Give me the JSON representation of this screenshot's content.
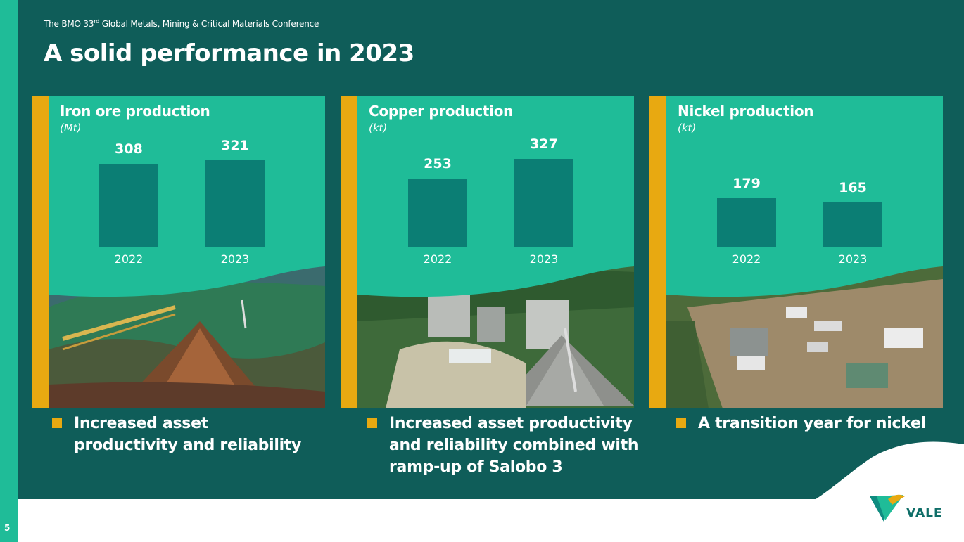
{
  "header": {
    "conference_prefix": "The BMO 33",
    "conference_sup": "rd",
    "conference_suffix": " Global Metals, Mining & Critical Materials Conference",
    "title": "A solid performance in 2023"
  },
  "colors": {
    "dark_teal": "#0f5d59",
    "bright_green": "#1fbc98",
    "bar_teal": "#0b7e74",
    "accent_yellow": "#e8a911"
  },
  "chart_data": [
    {
      "type": "bar",
      "title": "Iron ore production",
      "ylabel": "(Mt)",
      "categories": [
        "2022",
        "2023"
      ],
      "values": [
        308,
        321
      ]
    },
    {
      "type": "bar",
      "title": "Copper production",
      "ylabel": "(kt)",
      "categories": [
        "2022",
        "2023"
      ],
      "values": [
        253,
        327
      ]
    },
    {
      "type": "bar",
      "title": "Nickel production",
      "ylabel": "(kt)",
      "categories": [
        "2022",
        "2023"
      ],
      "values": [
        179,
        165
      ]
    }
  ],
  "bullets": [
    "Increased asset productivity and reliability",
    "Increased asset productivity and reliability combined with ramp-up of Salobo 3",
    "A transition year for nickel"
  ],
  "footer": {
    "page_number": "5",
    "logo_text": "VALE"
  }
}
